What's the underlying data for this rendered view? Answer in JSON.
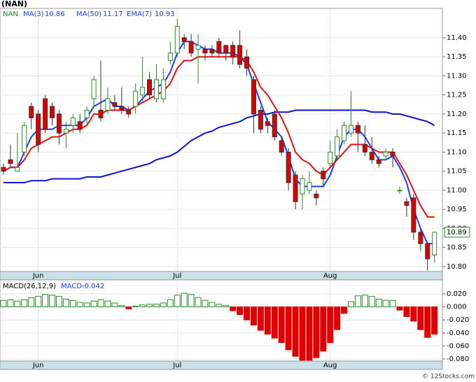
{
  "chart_data": [
    {
      "type": "candlestick",
      "title": "(NAN)",
      "name": "NAN",
      "source": "© 12Stocks.com",
      "categories": [
        null,
        null,
        null,
        null,
        null,
        "Jun",
        null,
        null,
        null,
        null,
        null,
        null,
        null,
        null,
        null,
        null,
        null,
        null,
        null,
        null,
        null,
        null,
        null,
        null,
        null,
        "Jul",
        null,
        null,
        null,
        null,
        null,
        null,
        null,
        null,
        null,
        null,
        null,
        null,
        null,
        null,
        null,
        null,
        null,
        null,
        null,
        null,
        null,
        "Aug",
        null,
        null,
        null,
        null,
        null,
        null,
        null,
        null,
        null,
        null,
        null,
        null,
        null,
        null,
        null
      ],
      "open": [
        11.06,
        11.08,
        11.05,
        11.1,
        11.22,
        11.2,
        11.24,
        11.22,
        11.2,
        11.15,
        11.17,
        11.18,
        11.19,
        11.24,
        11.21,
        11.21,
        11.23,
        11.22,
        11.21,
        11.22,
        11.25,
        11.29,
        11.24,
        11.24,
        11.34,
        11.36,
        11.4,
        11.39,
        11.37,
        11.37,
        11.37,
        11.39,
        11.38,
        11.38,
        11.38,
        11.35,
        11.29,
        11.21,
        11.18,
        11.2,
        11.13,
        11.1,
        11.04,
        10.99,
        11.0,
        10.99,
        11.05,
        11.07,
        11.09,
        11.13,
        11.15,
        11.17,
        11.12,
        11.1,
        11.08,
        11.09,
        11.1,
        11.0,
        10.97,
        10.98,
        10.89,
        10.86,
        10.83
      ],
      "high": [
        11.07,
        11.12,
        11.15,
        11.18,
        11.23,
        11.21,
        11.25,
        11.23,
        11.21,
        11.18,
        11.2,
        11.2,
        11.22,
        11.3,
        11.34,
        11.27,
        11.25,
        11.27,
        11.22,
        11.28,
        11.35,
        11.31,
        11.33,
        11.32,
        11.39,
        11.45,
        11.41,
        11.41,
        11.41,
        11.38,
        11.38,
        11.4,
        11.38,
        11.39,
        11.42,
        11.37,
        11.3,
        11.22,
        11.19,
        11.21,
        11.14,
        11.11,
        11.05,
        11.04,
        11.05,
        11.0,
        11.06,
        11.13,
        11.16,
        11.18,
        11.26,
        11.18,
        11.17,
        11.14,
        11.09,
        11.11,
        11.11,
        11.01,
        10.98,
        10.99,
        10.9,
        10.86,
        10.89
      ],
      "low": [
        11.04,
        11.06,
        11.05,
        11.09,
        11.16,
        11.1,
        11.15,
        11.17,
        11.12,
        11.11,
        11.15,
        11.15,
        11.17,
        11.22,
        11.18,
        11.2,
        11.21,
        11.2,
        11.19,
        11.2,
        11.23,
        11.24,
        11.23,
        11.23,
        11.33,
        11.35,
        11.37,
        11.35,
        11.28,
        11.34,
        11.35,
        11.35,
        11.34,
        11.33,
        11.32,
        11.3,
        11.15,
        11.15,
        11.15,
        11.13,
        11.09,
        11.0,
        10.95,
        10.95,
        10.99,
        10.96,
        11.01,
        11.06,
        11.08,
        11.12,
        11.14,
        11.1,
        11.09,
        11.07,
        11.06,
        11.08,
        11.06,
        10.99,
        10.93,
        10.87,
        10.84,
        10.79,
        10.81
      ],
      "close": [
        11.05,
        11.07,
        11.06,
        11.17,
        11.19,
        11.12,
        11.16,
        11.19,
        11.15,
        11.16,
        11.19,
        11.16,
        11.21,
        11.29,
        11.19,
        11.24,
        11.22,
        11.21,
        11.2,
        11.26,
        11.27,
        11.25,
        11.29,
        11.29,
        11.36,
        11.43,
        11.39,
        11.36,
        11.38,
        11.36,
        11.36,
        11.36,
        11.36,
        11.35,
        11.33,
        11.32,
        11.2,
        11.16,
        11.17,
        11.14,
        11.1,
        11.02,
        10.97,
        11.03,
        11.02,
        10.98,
        11.03,
        11.1,
        11.14,
        11.17,
        11.17,
        11.15,
        11.1,
        11.08,
        11.07,
        11.1,
        11.09,
        11.0,
        10.96,
        10.89,
        10.86,
        10.82,
        10.89
      ],
      "up_color": "#2a8a2a",
      "down_color": "#e00000",
      "series": [
        {
          "name": "MA(3)",
          "color": "#1a3cff",
          "values": [
            11.05,
            11.06,
            11.06,
            11.1,
            11.14,
            11.16,
            11.16,
            11.16,
            11.17,
            11.17,
            11.17,
            11.17,
            11.19,
            11.22,
            11.23,
            11.24,
            11.22,
            11.22,
            11.21,
            11.22,
            11.24,
            11.26,
            11.27,
            11.28,
            11.31,
            11.36,
            11.39,
            11.39,
            11.38,
            11.37,
            11.37,
            11.36,
            11.36,
            11.36,
            11.35,
            11.33,
            11.28,
            11.23,
            11.18,
            11.16,
            11.14,
            11.09,
            11.03,
            11.01,
            11.01,
            11.01,
            11.01,
            11.04,
            11.09,
            11.14,
            11.16,
            11.16,
            11.14,
            11.11,
            11.08,
            11.08,
            11.09,
            11.06,
            11.02,
            10.95,
            10.9,
            10.86,
            10.86
          ]
        },
        {
          "name": "MA(50)",
          "color": "#0a14d0",
          "values": [
            11.02,
            11.02,
            11.02,
            11.02,
            11.025,
            11.025,
            11.025,
            11.03,
            11.03,
            11.03,
            11.03,
            11.03,
            11.035,
            11.035,
            11.035,
            11.04,
            11.045,
            11.05,
            11.055,
            11.06,
            11.065,
            11.07,
            11.08,
            11.085,
            11.09,
            11.1,
            11.115,
            11.13,
            11.14,
            11.15,
            11.155,
            11.165,
            11.17,
            11.175,
            11.18,
            11.19,
            11.195,
            11.2,
            11.2,
            11.205,
            11.205,
            11.205,
            11.21,
            11.21,
            11.21,
            11.21,
            11.21,
            11.21,
            11.21,
            11.21,
            11.21,
            11.21,
            11.21,
            11.205,
            11.205,
            11.205,
            11.2,
            11.2,
            11.195,
            11.19,
            11.185,
            11.18,
            11.17
          ]
        },
        {
          "name": "EMA(7)",
          "color": "#e81010",
          "values": [
            11.05,
            11.06,
            11.06,
            11.08,
            11.11,
            11.12,
            11.13,
            11.14,
            11.14,
            11.15,
            11.16,
            11.16,
            11.17,
            11.2,
            11.2,
            11.21,
            11.21,
            11.21,
            11.21,
            11.22,
            11.23,
            11.24,
            11.25,
            11.26,
            11.28,
            11.32,
            11.34,
            11.34,
            11.35,
            11.35,
            11.35,
            11.35,
            11.35,
            11.35,
            11.35,
            11.34,
            11.31,
            11.27,
            11.25,
            11.22,
            11.19,
            11.15,
            11.1,
            11.08,
            11.07,
            11.05,
            11.04,
            11.06,
            11.08,
            11.1,
            11.12,
            11.12,
            11.12,
            11.11,
            11.1,
            11.1,
            11.1,
            11.07,
            11.04,
            11.0,
            10.96,
            10.93,
            10.93
          ]
        }
      ],
      "ylim": [
        10.787,
        11.477
      ],
      "yticks": [
        {
          "value": 10.8,
          "label": "10.80"
        },
        10.85,
        {
          "value": 10.9,
          "label": "10.90"
        },
        10.95,
        {
          "value": 11,
          "label": "11.00"
        },
        11.05,
        {
          "value": 11.1,
          "label": "11.10"
        },
        11.15,
        {
          "value": 11.2,
          "label": "11.20"
        },
        11.25,
        {
          "value": 11.3,
          "label": "11.30"
        },
        11.35,
        {
          "value": 11.4,
          "label": "11.40"
        }
      ],
      "grid": true
    },
    {
      "type": "bar",
      "title": "MACD(26,12,9)",
      "categories": [
        null,
        null,
        null,
        null,
        null,
        "Jun",
        null,
        null,
        null,
        null,
        null,
        null,
        null,
        null,
        null,
        null,
        null,
        null,
        null,
        null,
        null,
        null,
        null,
        null,
        null,
        "Jul",
        null,
        null,
        null,
        null,
        null,
        null,
        null,
        null,
        null,
        null,
        null,
        null,
        null,
        null,
        null,
        null,
        null,
        null,
        null,
        null,
        null,
        "Aug",
        null,
        null,
        null,
        null,
        null,
        null,
        null,
        null,
        null,
        null,
        null,
        null,
        null,
        null,
        null
      ],
      "series": [
        {
          "name": "MACD:",
          "color": "#e00000",
          "up_color": "#2a8a2a",
          "values": [
            0.01,
            0.011,
            0.009,
            0.011,
            0.014,
            0.016,
            0.019,
            0.018,
            0.016,
            0.012,
            0.01,
            0.007,
            0.006,
            0.009,
            0.011,
            0.009,
            0.006,
            0.002,
            -0.003,
            0.001,
            0.003,
            0.004,
            0.004,
            0.006,
            0.011,
            0.018,
            0.021,
            0.019,
            0.014,
            0.01,
            0.007,
            0.004,
            0.002,
            -0.006,
            -0.012,
            -0.02,
            -0.028,
            -0.036,
            -0.042,
            -0.048,
            -0.055,
            -0.066,
            -0.076,
            -0.082,
            -0.082,
            -0.078,
            -0.068,
            -0.055,
            -0.035,
            -0.01,
            0.008,
            0.017,
            0.018,
            0.016,
            0.012,
            0.01,
            0.01,
            -0.005,
            -0.015,
            -0.022,
            -0.035,
            -0.047,
            -0.042
          ]
        }
      ],
      "ylim": [
        -0.0832,
        0.0415
      ],
      "yticks": [
        {
          "value": 0.02,
          "label": "0.020"
        },
        {
          "value": 0,
          "label": "0.000"
        },
        {
          "value": -0.02,
          "label": "-0.020"
        },
        {
          "value": -0.04,
          "label": "-0.040"
        },
        {
          "value": -0.06,
          "label": "-0.060"
        },
        {
          "value": -0.08,
          "label": "-0.080"
        }
      ],
      "grid": true
    }
  ]
}
